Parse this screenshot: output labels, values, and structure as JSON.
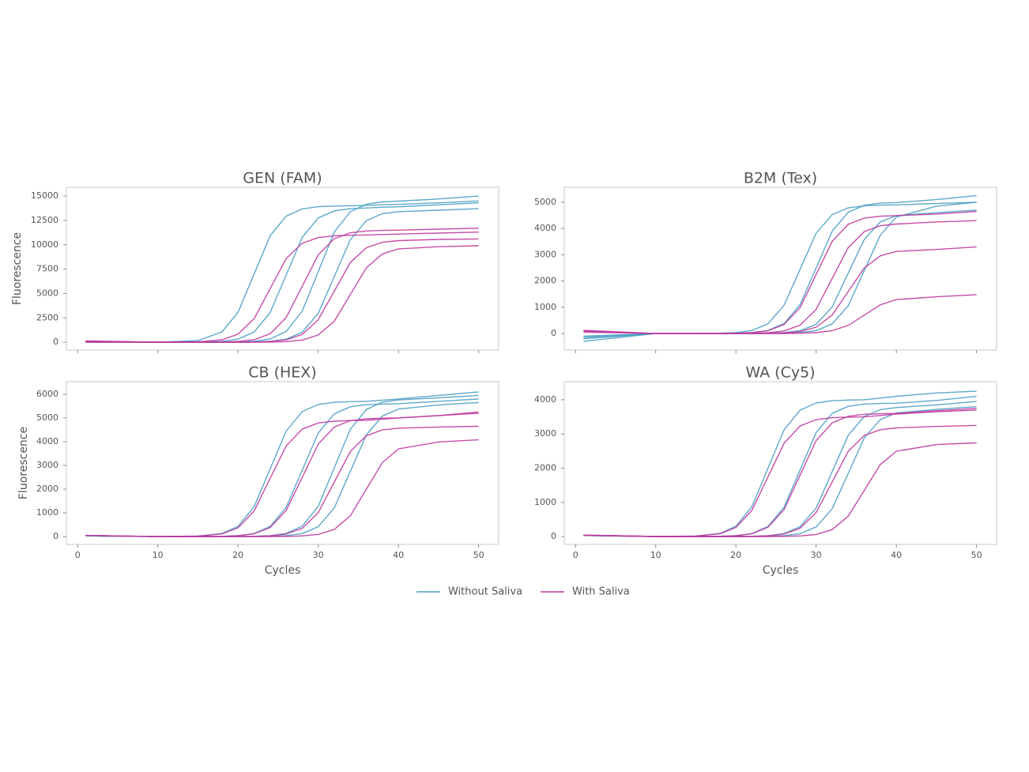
{
  "chart_data": {
    "type": "line",
    "x": [
      1,
      10,
      15,
      18,
      20,
      22,
      24,
      26,
      28,
      30,
      32,
      34,
      36,
      38,
      40,
      45,
      50
    ],
    "xlim": [
      -1.4,
      52.5
    ],
    "xticks": [
      0,
      10,
      20,
      30,
      40,
      50
    ],
    "xlabel": "Cycles",
    "ylabel": "Fluorescence",
    "legend": "bottom",
    "series": [
      {
        "name": "Without Saliva",
        "color": "#4a9fc4"
      },
      {
        "name": "With Saliva",
        "color": "#c0399f"
      }
    ],
    "panels": [
      {
        "title": "GEN (FAM)",
        "ylim": [
          -800,
          15900
        ],
        "yticks": [
          0,
          2500,
          5000,
          7500,
          10000,
          12500,
          15000
        ],
        "curves": [
          [
            [
              100,
              0,
              175,
              1064,
              3080,
              7000,
              10920,
              12936,
              13678,
              13902,
              13972,
              14000,
              14050,
              14100,
              14150,
              14300,
              14500
            ],
            [
              50,
              0,
              14,
              97,
              317,
              1049,
              3036,
              6900,
              10764,
              12751,
              13483,
              13703,
              13772,
              13850,
              13900,
              14100,
              14300
            ],
            [
              0,
              0,
              0,
              0,
              29,
              102,
              334,
              1102,
              3190,
              7250,
              11310,
              13398,
              14167,
              14399,
              14471,
              14700,
              15000
            ],
            [
              0,
              0,
              0,
              0,
              0,
              27,
              95,
              311,
              1026,
              2970,
              6750,
              10530,
              12474,
              13190,
              13406,
              13550,
              13700
            ]
          ],
          [
            [
              150,
              0,
              44,
              253,
              836,
              2420,
              5500,
              8580,
              10164,
              10747,
              10923,
              10978,
              11000,
              11050,
              11100,
              11200,
              11300
            ],
            [
              100,
              0,
              0,
              23,
              81,
              265,
              874,
              2530,
              5750,
              8970,
              10626,
              11236,
              11420,
              11477,
              11500,
              11600,
              11700
            ],
            [
              50,
              0,
              0,
              0,
              0,
              21,
              74,
              242,
              798,
              2310,
              5250,
              8190,
              9702,
              10259,
              10427,
              10550,
              10600
            ],
            [
              0,
              0,
              0,
              0,
              0,
              0,
              20,
              69,
              225,
              745,
              2156,
              4900,
              7644,
              9055,
              9575,
              9800,
              9900
            ]
          ]
        ]
      },
      {
        "title": "B2M (Tex)",
        "ylim": [
          -630,
          5570
        ],
        "yticks": [
          0,
          1000,
          2000,
          3000,
          4000,
          5000
        ],
        "curves": [
          [
            [
              -300,
              0,
              0,
              0,
              10,
              35,
              115,
              380,
              1100,
              2500,
              3900,
              4620,
              4885,
              4965,
              4990,
              5100,
              5250
            ],
            [
              -200,
              0,
              0,
              10,
              34,
              113,
              372,
              1078,
              2450,
              3822,
              4528,
              4787,
              4866,
              4890,
              4900,
              4950,
              5000
            ],
            [
              -100,
              0,
              0,
              0,
              0,
              0,
              9,
              32,
              106,
              350,
              1012,
              2300,
              3588,
              4250,
              4494,
              4600,
              4700
            ],
            [
              -150,
              0,
              0,
              0,
              0,
              0,
              0,
              10,
              34,
              110,
              365,
              1056,
              2400,
              3744,
              4435,
              4850,
              5000
            ]
          ],
          [
            [
              100,
              0,
              0,
              0,
              9,
              32,
              104,
              342,
              990,
              2250,
              3510,
              4158,
              4397,
              4469,
              4491,
              4550,
              4650
            ],
            [
              80,
              0,
              0,
              0,
              0,
              8,
              29,
              97,
              319,
              924,
              2100,
              3276,
              3881,
              4103,
              4171,
              4250,
              4300
            ],
            [
              120,
              0,
              0,
              0,
              0,
              0,
              6,
              22,
              74,
              243,
              704,
              1600,
              2496,
              2957,
              3126,
              3200,
              3300
            ],
            [
              50,
              0,
              0,
              0,
              0,
              0,
              0,
              3,
              10,
              32,
              106,
              308,
              700,
              1092,
              1294,
              1400,
              1480
            ]
          ]
        ]
      },
      {
        "title": "CB (HEX)",
        "ylim": [
          -330,
          6530
        ],
        "yticks": [
          0,
          1000,
          2000,
          3000,
          4000,
          5000,
          6000
        ],
        "curves": [
          [
            [
              30,
              0,
              23,
              131,
              433,
              1254,
              2850,
              4446,
              5267,
              5569,
              5660,
              5689,
              5700,
              5750,
              5800,
              5950,
              6100
            ],
            [
              30,
              0,
              0,
              11,
              39,
              129,
              426,
              1232,
              2800,
              4368,
              5174,
              5471,
              5561,
              5589,
              5600,
              5700,
              5800
            ],
            [
              30,
              0,
              0,
              0,
              0,
              12,
              41,
              133,
              441,
              1276,
              2900,
              4524,
              5359,
              5667,
              5759,
              5850,
              5950
            ],
            [
              30,
              0,
              0,
              0,
              0,
              0,
              11,
              39,
              127,
              418,
              1210,
              2750,
              4290,
              5082,
              5374,
              5550,
              5650
            ]
          ],
          [
            [
              50,
              0,
              20,
              113,
              372,
              1078,
              2450,
              3822,
              4528,
              4787,
              4866,
              4890,
              4900,
              4950,
              5000,
              5100,
              5200
            ],
            [
              50,
              0,
              0,
              10,
              35,
              115,
              380,
              1100,
              2500,
              3900,
              4620,
              4885,
              4965,
              4990,
              5000,
              5100,
              5250
            ],
            [
              50,
              0,
              0,
              0,
              0,
              9,
              32,
              106,
              350,
              1012,
              2300,
              3588,
              4250,
              4494,
              4568,
              4620,
              4650
            ],
            [
              50,
              0,
              0,
              0,
              0,
              0,
              0,
              8,
              28,
              92,
              304,
              880,
              2000,
              3120,
              3696,
              3990,
              4080
            ]
          ]
        ]
      },
      {
        "title": "WA (Cy5)",
        "ylim": [
          -230,
          4530
        ],
        "yticks": [
          0,
          1000,
          2000,
          3000,
          4000
        ],
        "curves": [
          [
            [
              30,
              0,
              16,
              92,
              304,
              880,
              2000,
              3120,
              3696,
              3908,
              3972,
              3992,
              4000,
              4050,
              4100,
              4200,
              4250
            ],
            [
              30,
              0,
              0,
              8,
              27,
              90,
              296,
              858,
              1950,
              3042,
              3604,
              3810,
              3873,
              3892,
              3900,
              3980,
              4100
            ],
            [
              30,
              0,
              0,
              0,
              0,
              8,
              27,
              87,
              289,
              836,
              1900,
              2964,
              3511,
              3713,
              3773,
              3850,
              3950
            ],
            [
              30,
              0,
              0,
              0,
              0,
              0,
              7,
              26,
              85,
              281,
              814,
              1850,
              2886,
              3419,
              3615,
              3720,
              3800
            ]
          ],
          [
            [
              40,
              0,
              14,
              81,
              266,
              770,
              1750,
              2730,
              3234,
              3420,
              3476,
              3493,
              3500,
              3540,
              3580,
              3650,
              3700
            ],
            [
              40,
              0,
              0,
              7,
              25,
              83,
              274,
              792,
              1800,
              2808,
              3326,
              3517,
              3575,
              3593,
              3600,
              3680,
              3750
            ],
            [
              40,
              0,
              0,
              0,
              0,
              6,
              22,
              74,
              243,
              704,
              1600,
              2496,
              2957,
              3126,
              3178,
              3220,
              3250
            ],
            [
              40,
              0,
              0,
              0,
              0,
              0,
              0,
              5,
              19,
              62,
              205,
              594,
              1350,
              2106,
              2495,
              2690,
              2740
            ]
          ]
        ]
      }
    ]
  }
}
